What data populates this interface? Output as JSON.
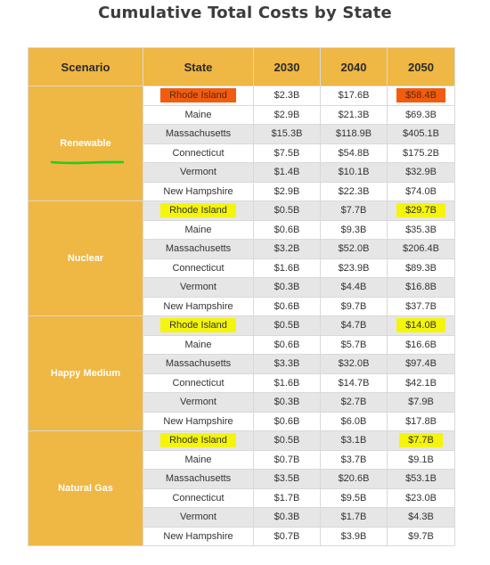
{
  "title": "Cumulative Total Costs by State",
  "headers": [
    "Scenario",
    "State",
    "2030",
    "2040",
    "2050"
  ],
  "colors": {
    "header_bg": "#efb743",
    "row_alt": "#e6e6e6",
    "highlight_orange": "#f25c11",
    "highlight_yellow": "#f5f50a",
    "underline_green": "#22cc22"
  },
  "scenarios": [
    {
      "name": "Renewable",
      "rows": [
        {
          "state": "Rhode Island",
          "y2030": "$2.3B",
          "y2040": "$17.6B",
          "y2050": "$58.4B"
        },
        {
          "state": "Maine",
          "y2030": "$2.9B",
          "y2040": "$21.3B",
          "y2050": "$69.3B"
        },
        {
          "state": "Massachusetts",
          "y2030": "$15.3B",
          "y2040": "$118.9B",
          "y2050": "$405.1B"
        },
        {
          "state": "Connecticut",
          "y2030": "$7.5B",
          "y2040": "$54.8B",
          "y2050": "$175.2B"
        },
        {
          "state": "Vermont",
          "y2030": "$1.4B",
          "y2040": "$10.1B",
          "y2050": "$32.9B"
        },
        {
          "state": "New Hampshire",
          "y2030": "$2.9B",
          "y2040": "$22.3B",
          "y2050": "$74.0B"
        }
      ]
    },
    {
      "name": "Nuclear",
      "rows": [
        {
          "state": "Rhode Island",
          "y2030": "$0.5B",
          "y2040": "$7.7B",
          "y2050": "$29.7B"
        },
        {
          "state": "Maine",
          "y2030": "$0.6B",
          "y2040": "$9.3B",
          "y2050": "$35.3B"
        },
        {
          "state": "Massachusetts",
          "y2030": "$3.2B",
          "y2040": "$52.0B",
          "y2050": "$206.4B"
        },
        {
          "state": "Connecticut",
          "y2030": "$1.6B",
          "y2040": "$23.9B",
          "y2050": "$89.3B"
        },
        {
          "state": "Vermont",
          "y2030": "$0.3B",
          "y2040": "$4.4B",
          "y2050": "$16.8B"
        },
        {
          "state": "New Hampshire",
          "y2030": "$0.6B",
          "y2040": "$9.7B",
          "y2050": "$37.7B"
        }
      ]
    },
    {
      "name": "Happy Medium",
      "rows": [
        {
          "state": "Rhode Island",
          "y2030": "$0.5B",
          "y2040": "$4.7B",
          "y2050": "$14.0B"
        },
        {
          "state": "Maine",
          "y2030": "$0.6B",
          "y2040": "$5.7B",
          "y2050": "$16.6B"
        },
        {
          "state": "Massachusetts",
          "y2030": "$3.3B",
          "y2040": "$32.0B",
          "y2050": "$97.4B"
        },
        {
          "state": "Connecticut",
          "y2030": "$1.6B",
          "y2040": "$14.7B",
          "y2050": "$42.1B"
        },
        {
          "state": "Vermont",
          "y2030": "$0.3B",
          "y2040": "$2.7B",
          "y2050": "$7.9B"
        },
        {
          "state": "New Hampshire",
          "y2030": "$0.6B",
          "y2040": "$6.0B",
          "y2050": "$17.8B"
        }
      ]
    },
    {
      "name": "Natural Gas",
      "rows": [
        {
          "state": "Rhode Island",
          "y2030": "$0.5B",
          "y2040": "$3.1B",
          "y2050": "$7.7B"
        },
        {
          "state": "Maine",
          "y2030": "$0.7B",
          "y2040": "$3.7B",
          "y2050": "$9.1B"
        },
        {
          "state": "Massachusetts",
          "y2030": "$3.5B",
          "y2040": "$20.6B",
          "y2050": "$53.1B"
        },
        {
          "state": "Connecticut",
          "y2030": "$1.7B",
          "y2040": "$9.5B",
          "y2050": "$23.0B"
        },
        {
          "state": "Vermont",
          "y2030": "$0.3B",
          "y2040": "$1.7B",
          "y2050": "$4.3B"
        },
        {
          "state": "New Hampshire",
          "y2030": "$0.7B",
          "y2040": "$3.9B",
          "y2050": "$9.7B"
        }
      ]
    }
  ]
}
